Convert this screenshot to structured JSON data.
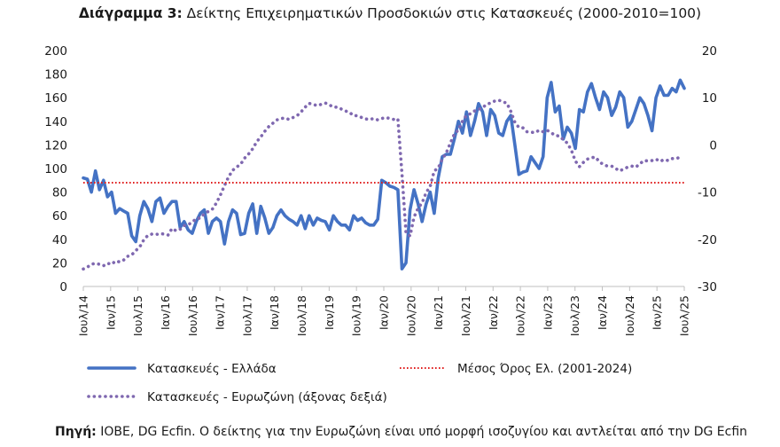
{
  "title": {
    "bold": "Διάγραμμα 3:",
    "rest": "Δείκτης Επιχειρηματικών Προσδοκιών στις Κατασκευές (2000-2010=100)"
  },
  "source": {
    "bold": "Πηγή:",
    "rest": "ΙΟΒΕ, DG Ecfin. Ο δείκτης για την Ευρωζώνη είναι υπό μορφή ισοζυγίου και αντλείται από την DG Ecfin"
  },
  "colors": {
    "greece": "#4472C4",
    "eurozone": "#7F68B0",
    "average": "#E02020"
  },
  "chart_data": {
    "type": "line",
    "ylim_left": [
      0,
      200
    ],
    "ylim_right": [
      -30,
      20
    ],
    "yticks_left": [
      "0",
      "20",
      "40",
      "60",
      "80",
      "100",
      "120",
      "140",
      "160",
      "180",
      "200"
    ],
    "yticks_right": [
      "-30",
      "-20",
      "-10",
      "0",
      "10",
      "20"
    ],
    "xlabels": [
      "Ιουλ/14",
      "Ιαν/15",
      "Ιουλ/15",
      "Ιαν/16",
      "Ιουλ/16",
      "Ιαν/17",
      "Ιουλ/17",
      "Ιαν/18",
      "Ιουλ/18",
      "Ιαν/19",
      "Ιουλ/19",
      "Ιαν/20",
      "Ιουλ/20",
      "Ιαν/21",
      "Ιουλ/21",
      "Ιαν/22",
      "Ιουλ/22",
      "Ιαν/23",
      "Ιουλ/23",
      "Ιαν/24",
      "Ιουλ/24",
      "Ιαν/25",
      "Ιουλ/25"
    ],
    "series": [
      {
        "name": "Κατασκευές  - Ελλάδα",
        "axis": "left",
        "style": "solid",
        "values": [
          92,
          91,
          80,
          98,
          82,
          90,
          76,
          80,
          62,
          66,
          64,
          62,
          43,
          38,
          60,
          72,
          66,
          55,
          72,
          75,
          62,
          68,
          72,
          72,
          50,
          55,
          48,
          45,
          55,
          62,
          65,
          45,
          55,
          58,
          55,
          36,
          55,
          65,
          62,
          44,
          45,
          62,
          70,
          45,
          68,
          58,
          45,
          50,
          60,
          65,
          60,
          57,
          55,
          52,
          60,
          49,
          60,
          52,
          58,
          56,
          55,
          48,
          60,
          55,
          52,
          52,
          48,
          60,
          56,
          58,
          54,
          52,
          52,
          57,
          90,
          88,
          85,
          84,
          82,
          15,
          20,
          65,
          82,
          70,
          55,
          70,
          80,
          62,
          92,
          110,
          112,
          112,
          125,
          140,
          130,
          148,
          128,
          140,
          155,
          148,
          128,
          150,
          145,
          130,
          128,
          140,
          145,
          120,
          95,
          97,
          98,
          110,
          105,
          100,
          110,
          160,
          173,
          148,
          153,
          125,
          135,
          130,
          117,
          150,
          148,
          165,
          172,
          160,
          150,
          165,
          160,
          145,
          152,
          165,
          160,
          135,
          140,
          150,
          160,
          155,
          145,
          132,
          160,
          170,
          162,
          162,
          168,
          165,
          175,
          168
        ]
      },
      {
        "name": "Κατασκευές - Ευρωζώνη (άξονας δεξιά)",
        "axis": "right",
        "style": "dotted",
        "values": [
          -26.3,
          -25.9,
          -25.3,
          -25.1,
          -25.3,
          -25.6,
          -25.1,
          -25.3,
          -24.6,
          -24.8,
          -24.4,
          -23.6,
          -23.3,
          -22.4,
          -21.6,
          -20.1,
          -19.2,
          -18.9,
          -19.0,
          -18.8,
          -18.9,
          -19.1,
          -17.7,
          -18.2,
          -17.9,
          -17.1,
          -16.9,
          -16.4,
          -15.6,
          -15.5,
          -14.6,
          -14.1,
          -13.6,
          -12.3,
          -10.6,
          -8.6,
          -6.8,
          -5.4,
          -4.7,
          -4.1,
          -2.8,
          -1.9,
          -0.8,
          0.7,
          1.7,
          2.9,
          3.9,
          4.6,
          5.3,
          5.6,
          5.7,
          5.4,
          5.8,
          6.2,
          7.0,
          8.0,
          8.8,
          8.6,
          8.3,
          8.6,
          8.9,
          8.5,
          8.0,
          8.0,
          7.6,
          7.2,
          6.9,
          6.2,
          6.2,
          5.8,
          5.5,
          5.4,
          5.6,
          5.3,
          5.6,
          5.8,
          5.6,
          5.4,
          5.5,
          -6.1,
          -18.5,
          -19.3,
          -15.3,
          -13.4,
          -12.3,
          -10.1,
          -8.8,
          -5.5,
          -4.9,
          -3.0,
          -1.7,
          0.4,
          2.3,
          3.2,
          5.0,
          6.3,
          6.6,
          7.2,
          7.5,
          7.9,
          8.6,
          8.9,
          9.3,
          9.5,
          9.1,
          8.9,
          7.1,
          4.8,
          3.7,
          3.6,
          2.8,
          2.7,
          2.6,
          3.1,
          2.8,
          3.1,
          2.6,
          2.0,
          1.9,
          1.1,
          0.4,
          -1.1,
          -3.4,
          -4.6,
          -3.7,
          -3.0,
          -2.7,
          -2.6,
          -3.6,
          -4.2,
          -4.5,
          -4.5,
          -5.0,
          -5.5,
          -5.1,
          -4.7,
          -4.5,
          -4.7,
          -4.0,
          -3.3,
          -3.4,
          -3.3,
          -3.0,
          -3.5,
          -3.1,
          -3.3,
          -2.9,
          -2.9,
          -2.6
        ]
      },
      {
        "name": "Μέσος Όρος Ελ. (2001-2024)",
        "axis": "left",
        "style": "dotted",
        "constant": 88
      }
    ],
    "legend": {
      "placement": "bottom",
      "entries": [
        "Κατασκευές  - Ελλάδα",
        "Μέσος Όρος Ελ. (2001-2024)",
        "Κατασκευές - Ευρωζώνη (άξονας δεξιά)"
      ]
    },
    "grid": false
  }
}
